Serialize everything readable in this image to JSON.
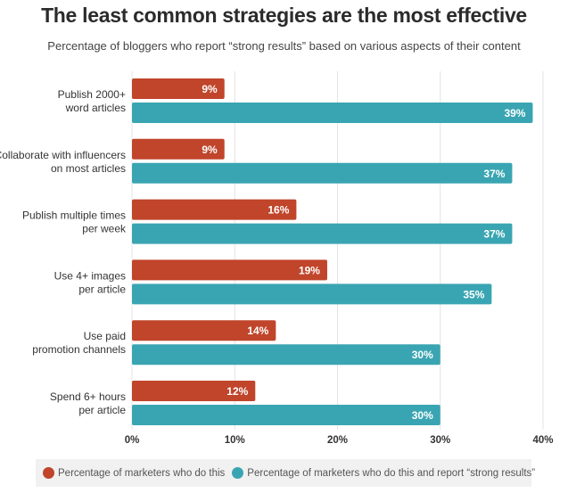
{
  "chart_data": {
    "type": "bar",
    "orientation": "horizontal",
    "title": "The least common strategies are the most effective",
    "subtitle": "Percentage of bloggers who report “strong results” based on various aspects of their content",
    "categories": [
      [
        "Publish 2000+",
        "word articles"
      ],
      [
        "Collaborate with influencers",
        "on most articles"
      ],
      [
        "Publish multiple times",
        "per week"
      ],
      [
        "Use 4+ images",
        "per article"
      ],
      [
        "Use paid",
        "promotion channels"
      ],
      [
        "Spend 6+ hours",
        "per article"
      ]
    ],
    "series": [
      {
        "name": "Percentage of marketers who do this",
        "color": "#c0452b",
        "values": [
          9,
          9,
          16,
          19,
          14,
          12
        ]
      },
      {
        "name": "Percentage of marketers who do this and report “strong results”",
        "color": "#3aa5b2",
        "values": [
          39,
          37,
          37,
          35,
          30,
          30
        ]
      }
    ],
    "xlim": [
      0,
      40
    ],
    "xticks": [
      "0%",
      "10%",
      "20%",
      "30%",
      "40%"
    ],
    "grid": true,
    "legend": "bottom"
  }
}
